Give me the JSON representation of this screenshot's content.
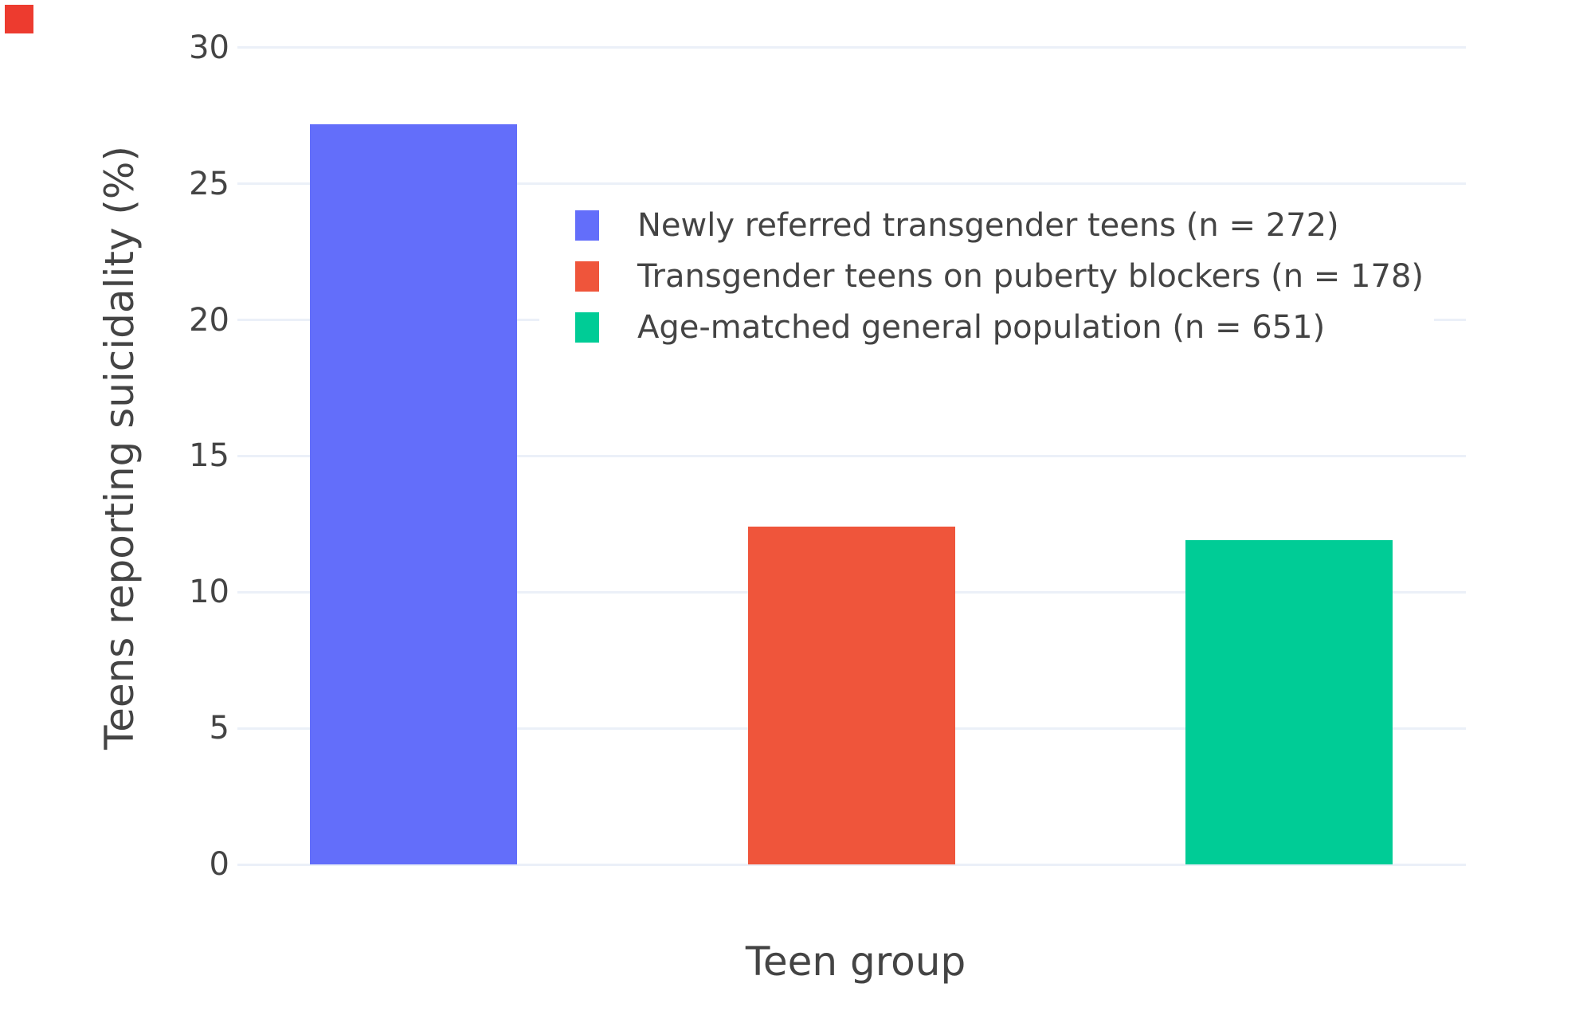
{
  "corner_marker": {
    "color": "#ed3b2f"
  },
  "colors": {
    "background": "#ffffff",
    "grid": "#ebf0f8",
    "text": "#444444",
    "bar_blue": "#636efa",
    "bar_red": "#ef553b",
    "bar_green": "#00cc96"
  },
  "chart_data": {
    "type": "bar",
    "title": "",
    "xlabel": "Teen group",
    "ylabel": "Teens reporting suicidality (%)",
    "categories": [
      "Newly referred transgender teens (n = 272)",
      "Transgender teens on puberty blockers (n = 178)",
      "Age-matched general population (n = 651)"
    ],
    "values": [
      27.2,
      12.4,
      11.9
    ],
    "ylim": [
      0,
      30
    ],
    "yticks": [
      0,
      5,
      10,
      15,
      20,
      25,
      30
    ],
    "grid": true,
    "legend_position": "inside-top-right",
    "legend": [
      {
        "label": "Newly referred transgender teens (n = 272)",
        "color": "#636efa"
      },
      {
        "label": "Transgender teens on puberty blockers (n = 178)",
        "color": "#ef553b"
      },
      {
        "label": "Age-matched general population (n = 651)",
        "color": "#00cc96"
      }
    ]
  }
}
